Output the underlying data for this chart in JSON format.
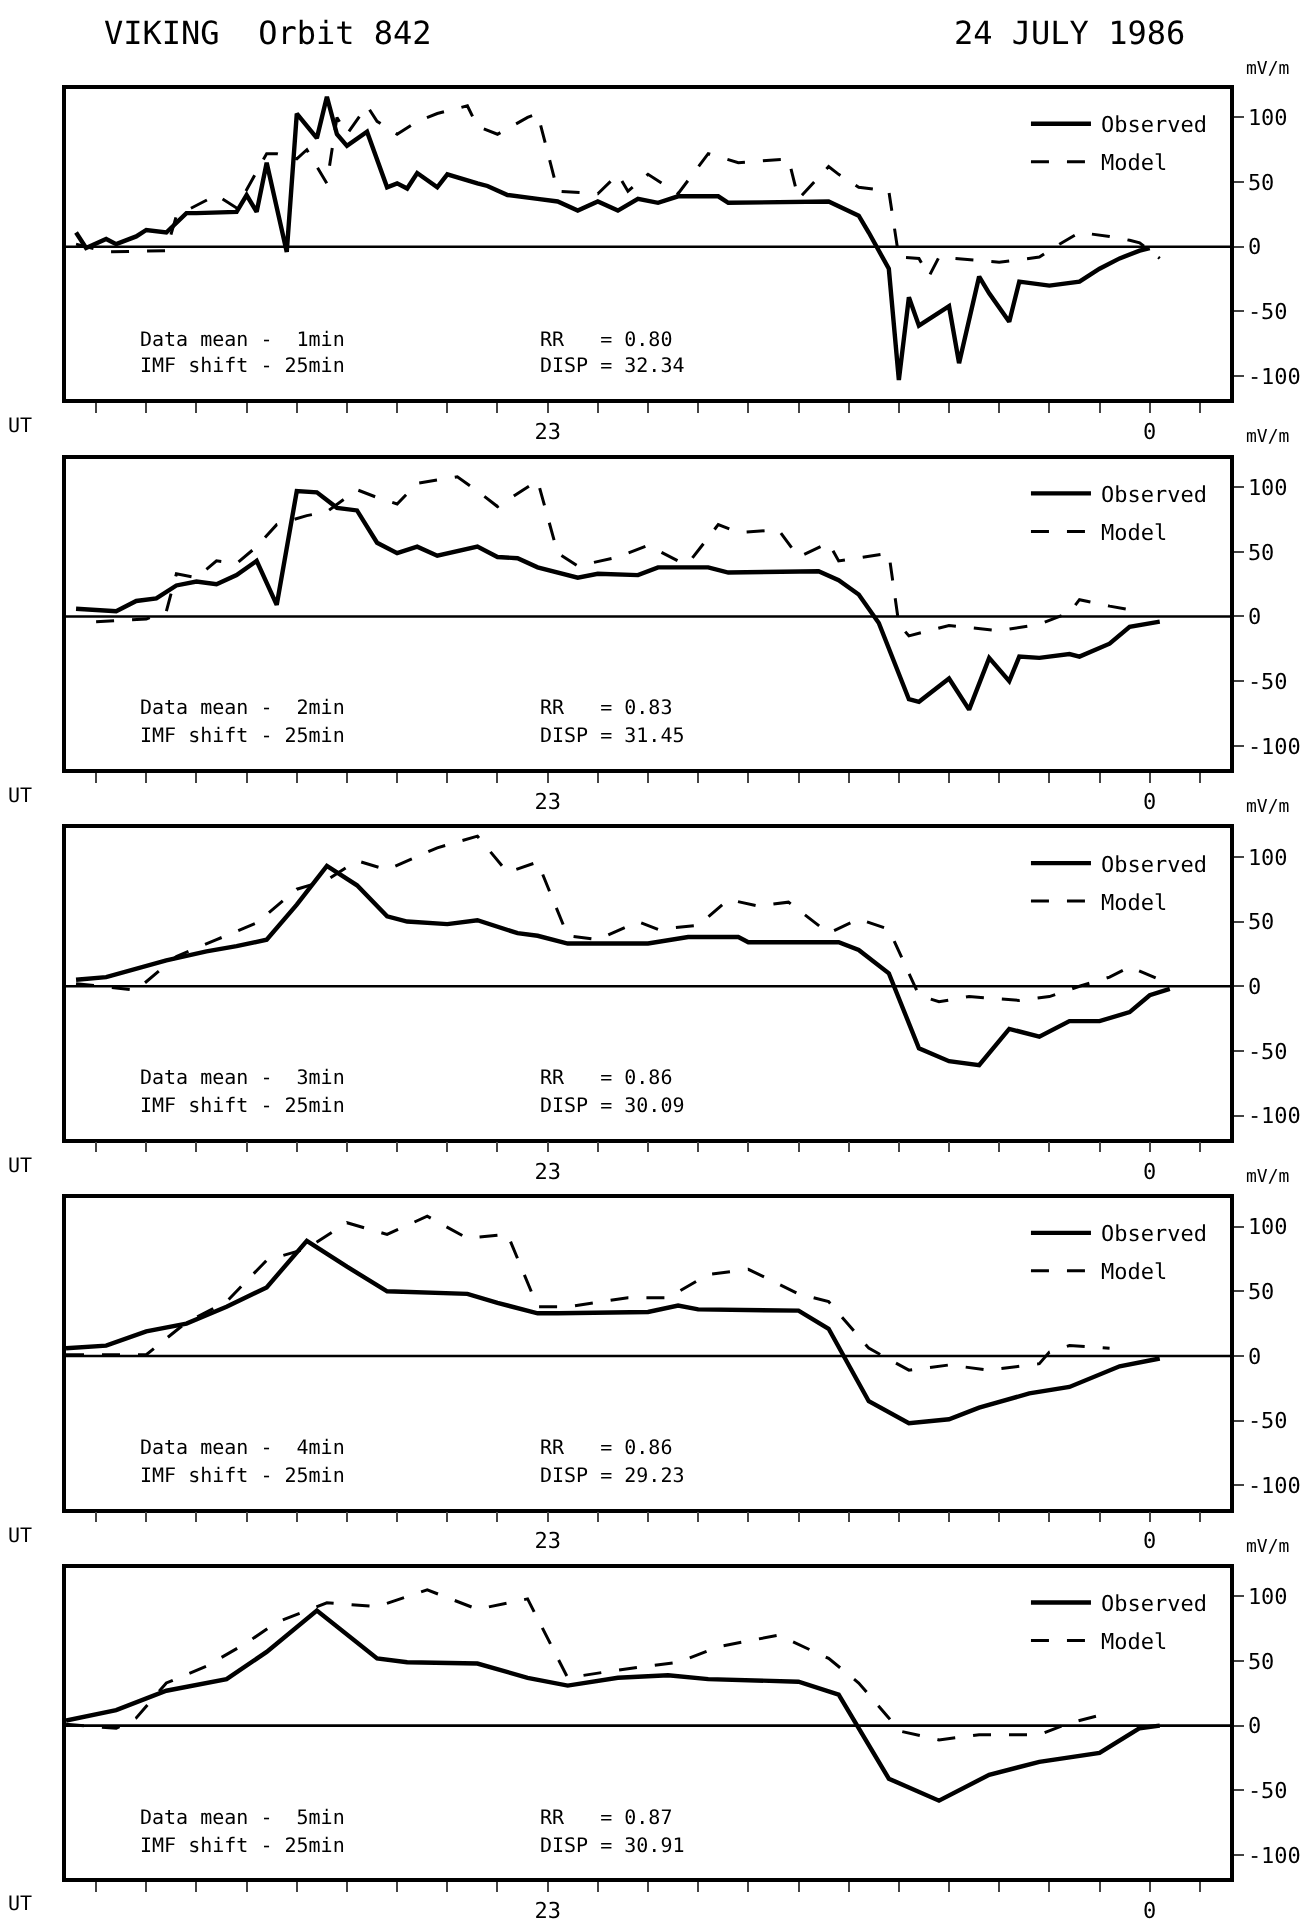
{
  "chart_data": [
    {
      "type": "line",
      "title": "VIKING  Orbit 842",
      "subtitle": "24 JULY 1986",
      "xlabel": "UT",
      "ylabel": "mV/m",
      "xlim": [
        "1986-07-24T22:12",
        "1986-07-25T00:08"
      ],
      "ylim": [
        -118,
        122
      ],
      "xticks": [
        {
          "value": "1986-07-24T22:15",
          "label": null
        },
        {
          "value": "1986-07-24T22:20",
          "label": null
        },
        {
          "value": "1986-07-24T22:25",
          "label": null
        },
        {
          "value": "1986-07-24T22:30",
          "label": null
        },
        {
          "value": "1986-07-24T22:35",
          "label": null
        },
        {
          "value": "1986-07-24T22:40",
          "label": null
        },
        {
          "value": "1986-07-24T22:45",
          "label": null
        },
        {
          "value": "1986-07-24T22:50",
          "label": null
        },
        {
          "value": "1986-07-24T22:55",
          "label": null
        },
        {
          "value": "1986-07-24T23:00",
          "label": "23"
        },
        {
          "value": "1986-07-24T23:05",
          "label": null
        },
        {
          "value": "1986-07-24T23:10",
          "label": null
        },
        {
          "value": "1986-07-24T23:15",
          "label": null
        },
        {
          "value": "1986-07-24T23:20",
          "label": null
        },
        {
          "value": "1986-07-24T23:25",
          "label": null
        },
        {
          "value": "1986-07-24T23:30",
          "label": null
        },
        {
          "value": "1986-07-24T23:35",
          "label": null
        },
        {
          "value": "1986-07-24T23:40",
          "label": null
        },
        {
          "value": "1986-07-24T23:45",
          "label": null
        },
        {
          "value": "1986-07-24T23:50",
          "label": null
        },
        {
          "value": "1986-07-24T23:55",
          "label": null
        },
        {
          "value": "1986-07-25T00:00",
          "label": "0"
        },
        {
          "value": "1986-07-25T00:05",
          "label": null
        }
      ],
      "yticks": [
        100,
        50,
        0,
        -50,
        -100
      ],
      "legend": "top right",
      "ref_lines": [
        {
          "axis": "y",
          "value": 0
        }
      ],
      "annotations": [
        "Data mean -  1min",
        "IMF shift - 25min",
        "RR   = 0.80",
        "DISP = 32.34"
      ],
      "series": [
        {
          "name": "Observed",
          "color": "#000000",
          "line_style": "solid",
          "x": [
            "1986-07-24T22:13",
            "1986-07-24T22:14",
            "1986-07-24T22:16",
            "1986-07-24T22:17",
            "1986-07-24T22:19",
            "1986-07-24T22:20",
            "1986-07-24T22:22",
            "1986-07-24T22:24",
            "1986-07-24T22:25",
            "1986-07-24T22:29",
            "1986-07-24T22:30",
            "1986-07-24T22:31",
            "1986-07-24T22:32",
            "1986-07-24T22:34",
            "1986-07-24T22:35",
            "1986-07-24T22:37",
            "1986-07-24T22:38",
            "1986-07-24T22:39",
            "1986-07-24T22:40",
            "1986-07-24T22:42",
            "1986-07-24T22:44",
            "1986-07-24T22:45",
            "1986-07-24T22:46",
            "1986-07-24T22:47",
            "1986-07-24T22:49",
            "1986-07-24T22:50",
            "1986-07-24T22:53",
            "1986-07-24T22:54",
            "1986-07-24T22:56",
            "1986-07-24T22:59",
            "1986-07-24T23:01",
            "1986-07-24T23:03",
            "1986-07-24T23:05",
            "1986-07-24T23:07",
            "1986-07-24T23:09",
            "1986-07-24T23:11",
            "1986-07-24T23:13",
            "1986-07-24T23:17",
            "1986-07-24T23:18",
            "1986-07-24T23:28",
            "1986-07-24T23:31",
            "1986-07-24T23:32",
            "1986-07-24T23:34",
            "1986-07-24T23:35",
            "1986-07-24T23:36",
            "1986-07-24T23:37",
            "1986-07-24T23:40",
            "1986-07-24T23:41",
            "1986-07-24T23:43",
            "1986-07-24T23:44",
            "1986-07-24T23:46",
            "1986-07-24T23:47",
            "1986-07-24T23:50",
            "1986-07-24T23:53",
            "1986-07-24T23:55",
            "1986-07-24T23:57",
            "1986-07-24T23:59",
            "1986-07-25T00:00"
          ],
          "values": [
            11,
            -1,
            6,
            2,
            8,
            13,
            11,
            26,
            26,
            27,
            40,
            27,
            65,
            -4,
            103,
            84,
            116,
            87,
            78,
            89,
            46,
            49,
            45,
            57,
            46,
            56,
            49,
            47,
            40,
            37,
            35,
            28,
            35,
            28,
            37,
            34,
            39,
            39,
            34,
            35,
            24,
            11,
            -17,
            -103,
            -39,
            -61,
            -46,
            -90,
            -23,
            -36,
            -58,
            -27,
            -30,
            -27,
            -17,
            -9,
            -3,
            -1
          ]
        },
        {
          "name": "Model",
          "color": "#000000",
          "line_style": "dashed",
          "x": [
            "1986-07-24T22:13",
            "1986-07-24T22:16",
            "1986-07-24T22:22",
            "1986-07-24T22:23",
            "1986-07-24T22:27",
            "1986-07-24T22:29",
            "1986-07-24T22:32",
            "1986-07-24T22:33",
            "1986-07-24T22:35",
            "1986-07-24T22:36",
            "1986-07-24T22:38",
            "1986-07-24T22:39",
            "1986-07-24T22:40",
            "1986-07-24T22:42",
            "1986-07-24T22:43",
            "1986-07-24T22:45",
            "1986-07-24T22:47",
            "1986-07-24T22:49",
            "1986-07-24T22:52",
            "1986-07-24T22:53",
            "1986-07-24T22:55",
            "1986-07-24T22:58",
            "1986-07-24T22:59",
            "1986-07-24T23:01",
            "1986-07-24T23:05",
            "1986-07-24T23:07",
            "1986-07-24T23:08",
            "1986-07-24T23:10",
            "1986-07-24T23:13",
            "1986-07-24T23:16",
            "1986-07-24T23:19",
            "1986-07-24T23:24",
            "1986-07-24T23:25",
            "1986-07-24T23:28",
            "1986-07-24T23:29",
            "1986-07-24T23:31",
            "1986-07-24T23:34",
            "1986-07-24T23:35",
            "1986-07-24T23:37",
            "1986-07-24T23:38",
            "1986-07-24T23:39",
            "1986-07-24T23:45",
            "1986-07-24T23:49",
            "1986-07-24T23:51",
            "1986-07-24T23:53",
            "1986-07-24T23:56",
            "1986-07-24T23:58",
            "1986-07-24T23:59",
            "1986-07-25T00:01"
          ],
          "values": [
            2,
            -4,
            -3,
            24,
            40,
            30,
            72,
            72,
            68,
            75,
            49,
            100,
            87,
            109,
            97,
            87,
            97,
            103,
            109,
            93,
            87,
            100,
            103,
            43,
            41,
            56,
            43,
            56,
            41,
            72,
            65,
            68,
            37,
            62,
            56,
            46,
            43,
            -8,
            -9,
            -23,
            -8,
            -12,
            -8,
            2,
            11,
            8,
            5,
            3,
            -9
          ]
        }
      ]
    },
    {
      "type": "line",
      "xlabel": "UT",
      "ylabel": "mV/m",
      "xlim": [
        "1986-07-24T22:12",
        "1986-07-25T00:08"
      ],
      "ylim": [
        -118,
        122
      ],
      "xticks": [
        {
          "value": "1986-07-24T22:15",
          "label": null
        },
        {
          "value": "1986-07-24T22:20",
          "label": null
        },
        {
          "value": "1986-07-24T22:25",
          "label": null
        },
        {
          "value": "1986-07-24T22:30",
          "label": null
        },
        {
          "value": "1986-07-24T22:35",
          "label": null
        },
        {
          "value": "1986-07-24T22:40",
          "label": null
        },
        {
          "value": "1986-07-24T22:45",
          "label": null
        },
        {
          "value": "1986-07-24T22:50",
          "label": null
        },
        {
          "value": "1986-07-24T22:55",
          "label": null
        },
        {
          "value": "1986-07-24T23:00",
          "label": "23"
        },
        {
          "value": "1986-07-24T23:05",
          "label": null
        },
        {
          "value": "1986-07-24T23:10",
          "label": null
        },
        {
          "value": "1986-07-24T23:15",
          "label": null
        },
        {
          "value": "1986-07-24T23:20",
          "label": null
        },
        {
          "value": "1986-07-24T23:25",
          "label": null
        },
        {
          "value": "1986-07-24T23:30",
          "label": null
        },
        {
          "value": "1986-07-24T23:35",
          "label": null
        },
        {
          "value": "1986-07-24T23:40",
          "label": null
        },
        {
          "value": "1986-07-24T23:45",
          "label": null
        },
        {
          "value": "1986-07-24T23:50",
          "label": null
        },
        {
          "value": "1986-07-24T23:55",
          "label": null
        },
        {
          "value": "1986-07-25T00:00",
          "label": "0"
        },
        {
          "value": "1986-07-25T00:05",
          "label": null
        }
      ],
      "yticks": [
        100,
        50,
        0,
        -50,
        -100
      ],
      "legend": "top right",
      "ref_lines": [
        {
          "axis": "y",
          "value": 0
        }
      ],
      "annotations": [
        "Data mean -  2min",
        "IMF shift - 25min",
        "RR   = 0.83",
        "DISP = 31.45"
      ],
      "series": [
        {
          "name": "Observed",
          "color": "#000000",
          "line_style": "solid",
          "x": [
            "1986-07-24T22:13",
            "1986-07-24T22:17",
            "1986-07-24T22:19",
            "1986-07-24T22:21",
            "1986-07-24T22:23",
            "1986-07-24T22:25",
            "1986-07-24T22:27",
            "1986-07-24T22:29",
            "1986-07-24T22:31",
            "1986-07-24T22:33",
            "1986-07-24T22:35",
            "1986-07-24T22:37",
            "1986-07-24T22:39",
            "1986-07-24T22:41",
            "1986-07-24T22:43",
            "1986-07-24T22:45",
            "1986-07-24T22:47",
            "1986-07-24T22:49",
            "1986-07-24T22:53",
            "1986-07-24T22:55",
            "1986-07-24T22:57",
            "1986-07-24T22:59",
            "1986-07-24T23:03",
            "1986-07-24T23:05",
            "1986-07-24T23:09",
            "1986-07-24T23:11",
            "1986-07-24T23:16",
            "1986-07-24T23:18",
            "1986-07-24T23:27",
            "1986-07-24T23:29",
            "1986-07-24T23:31",
            "1986-07-24T23:33",
            "1986-07-24T23:36",
            "1986-07-24T23:37",
            "1986-07-24T23:40",
            "1986-07-24T23:42",
            "1986-07-24T23:44",
            "1986-07-24T23:46",
            "1986-07-24T23:47",
            "1986-07-24T23:49",
            "1986-07-24T23:52",
            "1986-07-24T23:53",
            "1986-07-24T23:56",
            "1986-07-24T23:58",
            "1986-07-25T00:01"
          ],
          "values": [
            6,
            4,
            12,
            14,
            24,
            27,
            25,
            32,
            43,
            9,
            97,
            96,
            84,
            82,
            57,
            49,
            54,
            47,
            54,
            46,
            45,
            38,
            30,
            33,
            32,
            38,
            38,
            34,
            35,
            28,
            17,
            -5,
            -64,
            -66,
            -48,
            -72,
            -32,
            -50,
            -31,
            -32,
            -29,
            -31,
            -21,
            -8,
            -4
          ]
        },
        {
          "name": "Model",
          "color": "#000000",
          "line_style": "dashed",
          "x": [
            "1986-07-24T22:15",
            "1986-07-24T22:20",
            "1986-07-24T22:22",
            "1986-07-24T22:23",
            "1986-07-24T22:25",
            "1986-07-24T22:27",
            "1986-07-24T22:29",
            "1986-07-24T22:31",
            "1986-07-24T22:33",
            "1986-07-24T22:36",
            "1986-07-24T22:38",
            "1986-07-24T22:41",
            "1986-07-24T22:43",
            "1986-07-24T22:45",
            "1986-07-24T22:47",
            "1986-07-24T22:51",
            "1986-07-24T22:53",
            "1986-07-24T22:55",
            "1986-07-24T22:59",
            "1986-07-24T23:01",
            "1986-07-24T23:03",
            "1986-07-24T23:07",
            "1986-07-24T23:10",
            "1986-07-24T23:13",
            "1986-07-24T23:14",
            "1986-07-24T23:17",
            "1986-07-24T23:19",
            "1986-07-24T23:23",
            "1986-07-24T23:25",
            "1986-07-24T23:28",
            "1986-07-24T23:29",
            "1986-07-24T23:34",
            "1986-07-24T23:35",
            "1986-07-24T23:36",
            "1986-07-24T23:40",
            "1986-07-24T23:45",
            "1986-07-24T23:49",
            "1986-07-24T23:52",
            "1986-07-24T23:53",
            "1986-07-24T23:56",
            "1986-07-24T23:59"
          ],
          "values": [
            -4,
            -2,
            4,
            33,
            30,
            43,
            41,
            54,
            71,
            78,
            81,
            98,
            92,
            87,
            103,
            108,
            97,
            85,
            105,
            49,
            39,
            46,
            55,
            43,
            41,
            71,
            65,
            67,
            46,
            57,
            43,
            49,
            -6,
            -15,
            -7,
            -11,
            -6,
            3,
            13,
            8,
            4
          ]
        }
      ]
    },
    {
      "type": "line",
      "xlabel": "UT",
      "ylabel": "mV/m",
      "xlim": [
        "1986-07-24T22:12",
        "1986-07-25T00:08"
      ],
      "ylim": [
        -118,
        122
      ],
      "xticks": [
        {
          "value": "1986-07-24T22:15",
          "label": null
        },
        {
          "value": "1986-07-24T22:20",
          "label": null
        },
        {
          "value": "1986-07-24T22:25",
          "label": null
        },
        {
          "value": "1986-07-24T22:30",
          "label": null
        },
        {
          "value": "1986-07-24T22:35",
          "label": null
        },
        {
          "value": "1986-07-24T22:40",
          "label": null
        },
        {
          "value": "1986-07-24T22:45",
          "label": null
        },
        {
          "value": "1986-07-24T22:50",
          "label": null
        },
        {
          "value": "1986-07-24T22:55",
          "label": null
        },
        {
          "value": "1986-07-24T23:00",
          "label": "23"
        },
        {
          "value": "1986-07-24T23:05",
          "label": null
        },
        {
          "value": "1986-07-24T23:10",
          "label": null
        },
        {
          "value": "1986-07-24T23:15",
          "label": null
        },
        {
          "value": "1986-07-24T23:20",
          "label": null
        },
        {
          "value": "1986-07-24T23:25",
          "label": null
        },
        {
          "value": "1986-07-24T23:30",
          "label": null
        },
        {
          "value": "1986-07-24T23:35",
          "label": null
        },
        {
          "value": "1986-07-24T23:40",
          "label": null
        },
        {
          "value": "1986-07-24T23:45",
          "label": null
        },
        {
          "value": "1986-07-24T23:50",
          "label": null
        },
        {
          "value": "1986-07-24T23:55",
          "label": null
        },
        {
          "value": "1986-07-25T00:00",
          "label": "0"
        },
        {
          "value": "1986-07-25T00:05",
          "label": null
        }
      ],
      "yticks": [
        100,
        50,
        0,
        -50,
        -100
      ],
      "legend": "top right",
      "ref_lines": [
        {
          "axis": "y",
          "value": 0
        }
      ],
      "annotations": [
        "Data mean -  3min",
        "IMF shift - 25min",
        "RR   = 0.86",
        "DISP = 30.09"
      ],
      "series": [
        {
          "name": "Observed",
          "color": "#000000",
          "line_style": "solid",
          "x": [
            "1986-07-24T22:13",
            "1986-07-24T22:16",
            "1986-07-24T22:22",
            "1986-07-24T22:26",
            "1986-07-24T22:29",
            "1986-07-24T22:32",
            "1986-07-24T22:35",
            "1986-07-24T22:38",
            "1986-07-24T22:41",
            "1986-07-24T22:44",
            "1986-07-24T22:46",
            "1986-07-24T22:50",
            "1986-07-24T22:53",
            "1986-07-24T22:57",
            "1986-07-24T22:59",
            "1986-07-24T23:02",
            "1986-07-24T23:10",
            "1986-07-24T23:14",
            "1986-07-24T23:19",
            "1986-07-24T23:20",
            "1986-07-24T23:29",
            "1986-07-24T23:31",
            "1986-07-24T23:34",
            "1986-07-24T23:37",
            "1986-07-24T23:40",
            "1986-07-24T23:43",
            "1986-07-24T23:46",
            "1986-07-24T23:49",
            "1986-07-24T23:52",
            "1986-07-24T23:55",
            "1986-07-24T23:58",
            "1986-07-25T00:00",
            "1986-07-25T00:02"
          ],
          "values": [
            5,
            7,
            20,
            27,
            31,
            36,
            63,
            93,
            78,
            54,
            50,
            48,
            51,
            41,
            39,
            33,
            33,
            38,
            38,
            34,
            34,
            28,
            10,
            -48,
            -58,
            -61,
            -33,
            -39,
            -27,
            -27,
            -20,
            -7,
            -2
          ]
        },
        {
          "name": "Model",
          "color": "#000000",
          "line_style": "dashed",
          "x": [
            "1986-07-24T22:13",
            "1986-07-24T22:19",
            "1986-07-24T22:23",
            "1986-07-24T22:27",
            "1986-07-24T22:31",
            "1986-07-24T22:35",
            "1986-07-24T22:38",
            "1986-07-24T22:41",
            "1986-07-24T22:44",
            "1986-07-24T22:49",
            "1986-07-24T22:53",
            "1986-07-24T22:56",
            "1986-07-24T22:59",
            "1986-07-24T23:02",
            "1986-07-24T23:05",
            "1986-07-24T23:09",
            "1986-07-24T23:11",
            "1986-07-24T23:15",
            "1986-07-24T23:18",
            "1986-07-24T23:21",
            "1986-07-24T23:24",
            "1986-07-24T23:28",
            "1986-07-24T23:31",
            "1986-07-24T23:34",
            "1986-07-24T23:37",
            "1986-07-24T23:39",
            "1986-07-24T23:42",
            "1986-07-24T23:47",
            "1986-07-24T23:50",
            "1986-07-24T23:53",
            "1986-07-24T23:56",
            "1986-07-24T23:58",
            "1986-07-25T00:01"
          ],
          "values": [
            2,
            -3,
            23,
            36,
            49,
            75,
            82,
            97,
            90,
            107,
            116,
            88,
            96,
            39,
            36,
            50,
            44,
            47,
            67,
            62,
            65,
            41,
            52,
            44,
            -7,
            -12,
            -8,
            -11,
            -8,
            0,
            7,
            15,
            5
          ]
        }
      ]
    },
    {
      "type": "line",
      "xlabel": "UT",
      "ylabel": "mV/m",
      "xlim": [
        "1986-07-24T22:12",
        "1986-07-25T00:08"
      ],
      "ylim": [
        -118,
        122
      ],
      "xticks": [
        {
          "value": "1986-07-24T22:15",
          "label": null
        },
        {
          "value": "1986-07-24T22:20",
          "label": null
        },
        {
          "value": "1986-07-24T22:25",
          "label": null
        },
        {
          "value": "1986-07-24T22:30",
          "label": null
        },
        {
          "value": "1986-07-24T22:35",
          "label": null
        },
        {
          "value": "1986-07-24T22:40",
          "label": null
        },
        {
          "value": "1986-07-24T22:45",
          "label": null
        },
        {
          "value": "1986-07-24T22:50",
          "label": null
        },
        {
          "value": "1986-07-24T22:55",
          "label": null
        },
        {
          "value": "1986-07-24T23:00",
          "label": "23"
        },
        {
          "value": "1986-07-24T23:05",
          "label": null
        },
        {
          "value": "1986-07-24T23:10",
          "label": null
        },
        {
          "value": "1986-07-24T23:15",
          "label": null
        },
        {
          "value": "1986-07-24T23:20",
          "label": null
        },
        {
          "value": "1986-07-24T23:25",
          "label": null
        },
        {
          "value": "1986-07-24T23:30",
          "label": null
        },
        {
          "value": "1986-07-24T23:35",
          "label": null
        },
        {
          "value": "1986-07-24T23:40",
          "label": null
        },
        {
          "value": "1986-07-24T23:45",
          "label": null
        },
        {
          "value": "1986-07-24T23:50",
          "label": null
        },
        {
          "value": "1986-07-24T23:55",
          "label": null
        },
        {
          "value": "1986-07-25T00:00",
          "label": "0"
        },
        {
          "value": "1986-07-25T00:05",
          "label": null
        }
      ],
      "yticks": [
        100,
        50,
        0,
        -50,
        -100
      ],
      "legend": "top right",
      "ref_lines": [
        {
          "axis": "y",
          "value": 0
        }
      ],
      "annotations": [
        "Data mean -  4min",
        "IMF shift - 25min",
        "RR   = 0.86",
        "DISP = 29.23"
      ],
      "series": [
        {
          "name": "Observed",
          "color": "#000000",
          "line_style": "solid",
          "x": [
            "1986-07-24T22:12",
            "1986-07-24T22:16",
            "1986-07-24T22:20",
            "1986-07-24T22:24",
            "1986-07-24T22:28",
            "1986-07-24T22:32",
            "1986-07-24T22:36",
            "1986-07-24T22:40",
            "1986-07-24T22:44",
            "1986-07-24T22:52",
            "1986-07-24T22:55",
            "1986-07-24T22:59",
            "1986-07-24T23:01",
            "1986-07-24T23:10",
            "1986-07-24T23:13",
            "1986-07-24T23:15",
            "1986-07-24T23:25",
            "1986-07-24T23:28",
            "1986-07-24T23:32",
            "1986-07-24T23:36",
            "1986-07-24T23:40",
            "1986-07-24T23:43",
            "1986-07-24T23:48",
            "1986-07-24T23:52",
            "1986-07-24T23:57",
            "1986-07-25T00:01"
          ],
          "values": [
            6,
            8,
            19,
            25,
            38,
            53,
            89,
            69,
            50,
            48,
            41,
            33,
            33,
            34,
            39,
            36,
            35,
            21,
            -35,
            -52,
            -49,
            -40,
            -29,
            -24,
            -8,
            -2
          ]
        },
        {
          "name": "Model",
          "color": "#000000",
          "line_style": "dashed",
          "x": [
            "1986-07-24T22:12",
            "1986-07-24T22:20",
            "1986-07-24T22:24",
            "1986-07-24T22:28",
            "1986-07-24T22:32",
            "1986-07-24T22:36",
            "1986-07-24T22:40",
            "1986-07-24T22:44",
            "1986-07-24T22:48",
            "1986-07-24T22:52",
            "1986-07-24T22:56",
            "1986-07-24T22:59",
            "1986-07-24T23:02",
            "1986-07-24T23:08",
            "1986-07-24T23:12",
            "1986-07-24T23:16",
            "1986-07-24T23:20",
            "1986-07-24T23:25",
            "1986-07-24T23:28",
            "1986-07-24T23:32",
            "1986-07-24T23:36",
            "1986-07-24T23:40",
            "1986-07-24T23:44",
            "1986-07-24T23:49",
            "1986-07-24T23:50",
            "1986-07-24T23:52",
            "1986-07-24T23:56"
          ],
          "values": [
            1,
            1,
            26,
            42,
            74,
            83,
            103,
            94,
            108,
            91,
            94,
            38,
            38,
            45,
            45,
            63,
            67,
            48,
            42,
            6,
            -11,
            -7,
            -11,
            -6,
            3,
            8,
            6
          ]
        }
      ]
    },
    {
      "type": "line",
      "xlabel": "UT",
      "ylabel": "mV/m",
      "xlim": [
        "1986-07-24T22:12",
        "1986-07-25T00:08"
      ],
      "ylim": [
        -118,
        122
      ],
      "xticks": [
        {
          "value": "1986-07-24T22:15",
          "label": null
        },
        {
          "value": "1986-07-24T22:20",
          "label": null
        },
        {
          "value": "1986-07-24T22:25",
          "label": null
        },
        {
          "value": "1986-07-24T22:30",
          "label": null
        },
        {
          "value": "1986-07-24T22:35",
          "label": null
        },
        {
          "value": "1986-07-24T22:40",
          "label": null
        },
        {
          "value": "1986-07-24T22:45",
          "label": null
        },
        {
          "value": "1986-07-24T22:50",
          "label": null
        },
        {
          "value": "1986-07-24T22:55",
          "label": null
        },
        {
          "value": "1986-07-24T23:00",
          "label": "23"
        },
        {
          "value": "1986-07-24T23:05",
          "label": null
        },
        {
          "value": "1986-07-24T23:10",
          "label": null
        },
        {
          "value": "1986-07-24T23:15",
          "label": null
        },
        {
          "value": "1986-07-24T23:20",
          "label": null
        },
        {
          "value": "1986-07-24T23:25",
          "label": null
        },
        {
          "value": "1986-07-24T23:30",
          "label": null
        },
        {
          "value": "1986-07-24T23:35",
          "label": null
        },
        {
          "value": "1986-07-24T23:40",
          "label": null
        },
        {
          "value": "1986-07-24T23:45",
          "label": null
        },
        {
          "value": "1986-07-24T23:50",
          "label": null
        },
        {
          "value": "1986-07-24T23:55",
          "label": null
        },
        {
          "value": "1986-07-25T00:00",
          "label": "0"
        },
        {
          "value": "1986-07-25T00:05",
          "label": null
        }
      ],
      "yticks": [
        100,
        50,
        0,
        -50,
        -100
      ],
      "legend": "top right",
      "ref_lines": [
        {
          "axis": "y",
          "value": 0
        }
      ],
      "annotations": [
        "Data mean -  5min",
        "IMF shift - 25min",
        "RR   = 0.87",
        "DISP = 30.91"
      ],
      "series": [
        {
          "name": "Observed",
          "color": "#000000",
          "line_style": "solid",
          "x": [
            "1986-07-24T22:12",
            "1986-07-24T22:17",
            "1986-07-24T22:22",
            "1986-07-24T22:28",
            "1986-07-24T22:32",
            "1986-07-24T22:37",
            "1986-07-24T22:43",
            "1986-07-24T22:46",
            "1986-07-24T22:53",
            "1986-07-24T22:58",
            "1986-07-24T23:02",
            "1986-07-24T23:07",
            "1986-07-24T23:12",
            "1986-07-24T23:16",
            "1986-07-24T23:25",
            "1986-07-24T23:29",
            "1986-07-24T23:34",
            "1986-07-24T23:39",
            "1986-07-24T23:44",
            "1986-07-24T23:49",
            "1986-07-24T23:55",
            "1986-07-24T23:59",
            "1986-07-25T00:01"
          ],
          "values": [
            4,
            12,
            27,
            36,
            57,
            89,
            52,
            49,
            48,
            37,
            31,
            37,
            39,
            36,
            34,
            24,
            -41,
            -58,
            -38,
            -28,
            -21,
            -2,
            0
          ]
        },
        {
          "name": "Model",
          "color": "#000000",
          "line_style": "dashed",
          "x": [
            "1986-07-24T22:12",
            "1986-07-24T22:17",
            "1986-07-24T22:19",
            "1986-07-24T22:22",
            "1986-07-24T22:26",
            "1986-07-24T22:30",
            "1986-07-24T22:33",
            "1986-07-24T22:38",
            "1986-07-24T22:43",
            "1986-07-24T22:48",
            "1986-07-24T22:53",
            "1986-07-24T22:58",
            "1986-07-24T23:02",
            "1986-07-24T23:07",
            "1986-07-24T23:13",
            "1986-07-24T23:17",
            "1986-07-24T23:23",
            "1986-07-24T23:28",
            "1986-07-24T23:31",
            "1986-07-24T23:34",
            "1986-07-24T23:35",
            "1986-07-24T23:39",
            "1986-07-24T23:43",
            "1986-07-24T23:49",
            "1986-07-24T23:52",
            "1986-07-24T23:55"
          ],
          "values": [
            1,
            -2,
            6,
            33,
            46,
            64,
            80,
            95,
            92,
            105,
            90,
            98,
            37,
            43,
            49,
            61,
            70,
            52,
            33,
            6,
            -4,
            -11,
            -7,
            -7,
            2,
            8
          ]
        }
      ]
    }
  ]
}
